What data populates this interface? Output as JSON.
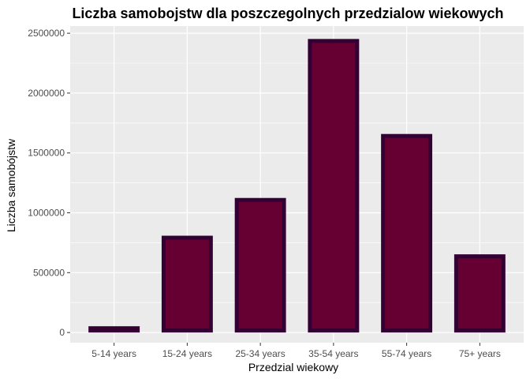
{
  "chart_data": {
    "type": "bar",
    "title": "Liczba samobojstw dla poszczegolnych przedzialow wiekowych",
    "xlabel": "Przedzial wiekowy",
    "ylabel": "Liczba samobójstw",
    "categories": [
      "5-14 years",
      "15-24 years",
      "25-34 years",
      "35-54 years",
      "55-74 years",
      "75+ years"
    ],
    "values": [
      52264,
      808542,
      1123912,
      2452141,
      1658443,
      653118
    ],
    "ylim": [
      -85000,
      2560000
    ],
    "yticks": [
      0,
      500000,
      1000000,
      1500000,
      2000000,
      2500000
    ],
    "ytick_labels": [
      "0",
      "500000",
      "1000000",
      "1500000",
      "2000000",
      "2500000"
    ],
    "grid": true,
    "legend": "none",
    "colors": {
      "panel_bg": "#ebebeb",
      "grid": "#ffffff",
      "bar_fill": "#660033",
      "bar_outline": "#330033"
    }
  }
}
